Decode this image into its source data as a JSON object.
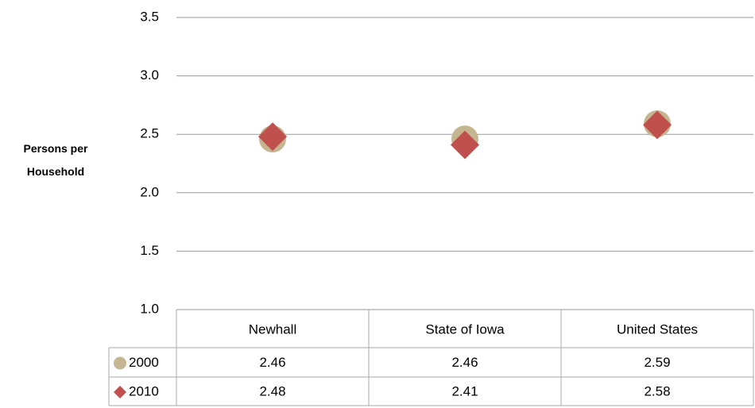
{
  "chart_data": {
    "type": "scatter",
    "y_label": "Persons per Household",
    "categories": [
      "Newhall",
      "State of Iowa",
      "United States"
    ],
    "series": [
      {
        "name": "2000",
        "color": "#c6b591",
        "marker": "circle",
        "values": [
          2.46,
          2.46,
          2.59
        ]
      },
      {
        "name": "2010",
        "color": "#c0504d",
        "marker": "diamond",
        "values": [
          2.48,
          2.41,
          2.58
        ]
      }
    ],
    "ylim": [
      1.0,
      3.5
    ],
    "yticks": [
      {
        "value": 1.0,
        "label": "1.0"
      },
      {
        "value": 1.5,
        "label": "1.5"
      },
      {
        "value": 2.0,
        "label": "2.0"
      },
      {
        "value": 2.5,
        "label": "2.5"
      },
      {
        "value": 3.0,
        "label": "3.0"
      },
      {
        "value": 3.5,
        "label": "3.5"
      }
    ],
    "grid": true,
    "data_table": true
  }
}
